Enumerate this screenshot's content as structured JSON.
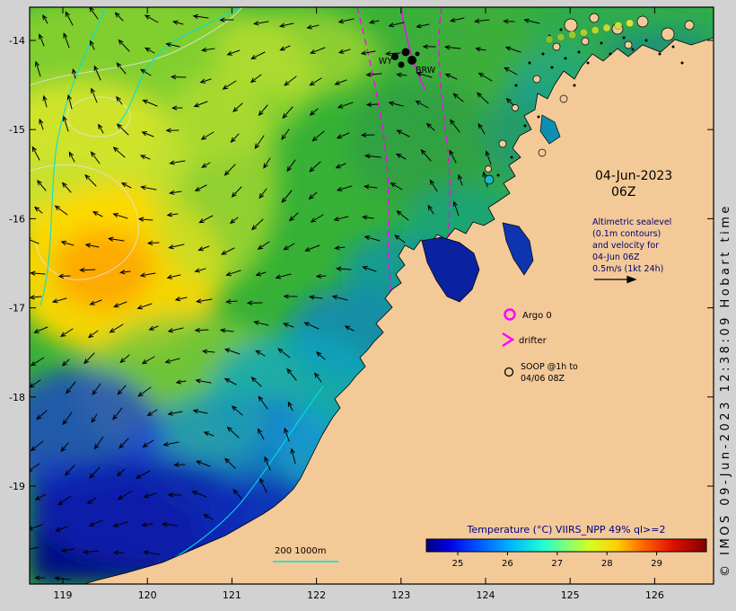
{
  "figure": {
    "bg_color": "#d2d2d2",
    "land_color": "#f3c998",
    "ocean_base_color": "#37b136"
  },
  "axes": {
    "lon_ticks": [
      "119",
      "120",
      "121",
      "122",
      "123",
      "124",
      "125",
      "126"
    ],
    "lat_ticks": [
      "-14",
      "-15",
      "-16",
      "-17",
      "-18",
      "-19"
    ]
  },
  "annotations": {
    "datetime": {
      "line1": "04-Jun-2023",
      "line2": "06Z"
    },
    "altimetry_note": [
      "Altimetric sealevel",
      "(0.1m contours)",
      "and velocity for",
      "04-Jun 06Z",
      "0.5m/s (1kt 24h)"
    ],
    "legend": {
      "argo": "Argo 0",
      "drifter": "drifter",
      "soop_line1": "SOOP @1h to",
      "soop_line2": "04/06 08Z"
    },
    "depth_contours": "200  1000m",
    "stations": {
      "wy": "WY",
      "brw": "BRW"
    },
    "credit": "© IMOS 09-Jun-2023 12:38:09 Hobart time"
  },
  "colorbar": {
    "title": "Temperature (°C) VIIRS_NPP 49% ql>=2",
    "tick_labels": [
      "25",
      "26",
      "27",
      "28",
      "29"
    ],
    "title_color": "#000080"
  },
  "symbol_colors": {
    "argo": "#ff00ff",
    "drifter": "#ff00ff",
    "soop": "#000000",
    "depth_contour": "#00e0e0",
    "sla_contour": "#ff00ff",
    "arrow": "#000000"
  }
}
